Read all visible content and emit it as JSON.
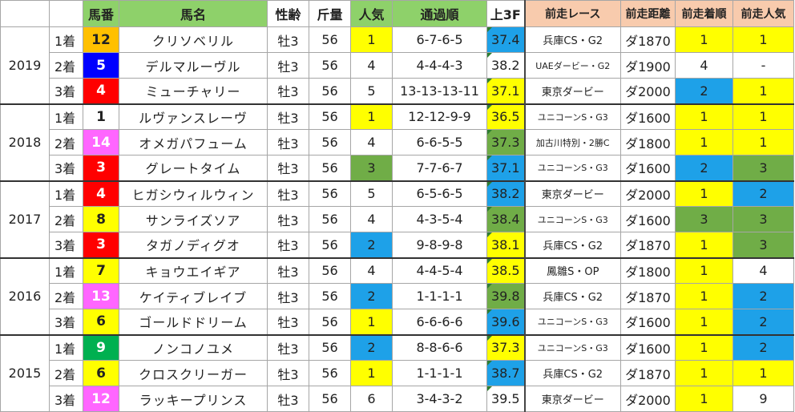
{
  "headers": {
    "blank1": "",
    "blank2": "",
    "umaban": "馬番",
    "bamei": "馬名",
    "seirei": "性齢",
    "kinryo": "斤量",
    "ninki": "人気",
    "tsuka": "通過順",
    "agari": "上3F",
    "zen_race": "前走レース",
    "zen_kyori": "前走距離",
    "zen_chaku": "前走着順",
    "zen_ninki": "前走人気"
  },
  "colors": {
    "yellow": "#ffff00",
    "blue": "#1ea1e8",
    "green": "#70ad47",
    "orange": "#f8cbad",
    "white": "#ffffff",
    "header_green": "#8ed16a"
  },
  "rows": [
    {
      "year": "2019",
      "place": "1着",
      "num": "12",
      "num_bg": "#ffc000",
      "num_fg": "#222",
      "name": "クリソベリル",
      "sex": "牡3",
      "kg": "56",
      "pop": "1",
      "pop_bg": "#ffff00",
      "pass": "6-7-6-5",
      "l3f": "37.4",
      "l3f_bg": "#1ea1e8",
      "prev_race": "兵庫CS・G2",
      "prev_dist": "ダ1870",
      "prev_rank": "1",
      "prev_rank_bg": "#ffff00",
      "prev_pop": "1",
      "prev_pop_bg": "#ffff00"
    },
    {
      "year": "",
      "place": "2着",
      "num": "5",
      "num_bg": "#0000ff",
      "num_fg": "#ffffff",
      "name": "デルマルーヴル",
      "sex": "牡3",
      "kg": "56",
      "pop": "4",
      "pop_bg": "#ffffff",
      "pass": "4-4-4-3",
      "l3f": "38.2",
      "l3f_bg": "#ffffff",
      "prev_race": "UAEダービー・G2",
      "prev_dist": "ダ1900",
      "prev_rank": "4",
      "prev_rank_bg": "#ffffff",
      "prev_pop": "-",
      "prev_pop_bg": "#ffffff"
    },
    {
      "year": "",
      "place": "3着",
      "num": "4",
      "num_bg": "#ff0000",
      "num_fg": "#ffffff",
      "name": "ミューチャリー",
      "sex": "牡3",
      "kg": "56",
      "pop": "5",
      "pop_bg": "#ffffff",
      "pass": "13-13-13-11",
      "l3f": "37.1",
      "l3f_bg": "#ffff00",
      "prev_race": "東京ダービー",
      "prev_dist": "ダ2000",
      "prev_rank": "2",
      "prev_rank_bg": "#1ea1e8",
      "prev_pop": "1",
      "prev_pop_bg": "#ffff00"
    },
    {
      "year": "2018",
      "place": "1着",
      "num": "1",
      "num_bg": "#ffffff",
      "num_fg": "#222",
      "name": "ルヴァンスレーヴ",
      "sex": "牡3",
      "kg": "56",
      "pop": "1",
      "pop_bg": "#ffff00",
      "pass": "12-12-9-9",
      "l3f": "36.5",
      "l3f_bg": "#ffff00",
      "prev_race": "ユニコーンS・G3",
      "prev_dist": "ダ1600",
      "prev_rank": "1",
      "prev_rank_bg": "#ffff00",
      "prev_pop": "1",
      "prev_pop_bg": "#ffff00"
    },
    {
      "year": "",
      "place": "2着",
      "num": "14",
      "num_bg": "#ff66ff",
      "num_fg": "#ffffff",
      "name": "オメガパフューム",
      "sex": "牡3",
      "kg": "56",
      "pop": "4",
      "pop_bg": "#ffffff",
      "pass": "6-6-5-5",
      "l3f": "37.3",
      "l3f_bg": "#70ad47",
      "prev_race": "加古川特別・2勝C",
      "prev_dist": "ダ1800",
      "prev_rank": "1",
      "prev_rank_bg": "#ffff00",
      "prev_pop": "1",
      "prev_pop_bg": "#ffff00"
    },
    {
      "year": "",
      "place": "3着",
      "num": "3",
      "num_bg": "#ff0000",
      "num_fg": "#ffffff",
      "name": "グレートタイム",
      "sex": "牡3",
      "kg": "56",
      "pop": "3",
      "pop_bg": "#70ad47",
      "pass": "7-7-6-7",
      "l3f": "37.1",
      "l3f_bg": "#1ea1e8",
      "prev_race": "ユニコーンS・G3",
      "prev_dist": "ダ1600",
      "prev_rank": "2",
      "prev_rank_bg": "#1ea1e8",
      "prev_pop": "3",
      "prev_pop_bg": "#70ad47"
    },
    {
      "year": "2017",
      "place": "1着",
      "num": "4",
      "num_bg": "#ff0000",
      "num_fg": "#ffffff",
      "name": "ヒガシウィルウィン",
      "sex": "牡3",
      "kg": "56",
      "pop": "5",
      "pop_bg": "#ffffff",
      "pass": "6-5-6-5",
      "l3f": "38.2",
      "l3f_bg": "#1ea1e8",
      "prev_race": "東京ダービー",
      "prev_dist": "ダ2000",
      "prev_rank": "1",
      "prev_rank_bg": "#ffff00",
      "prev_pop": "2",
      "prev_pop_bg": "#1ea1e8"
    },
    {
      "year": "",
      "place": "2着",
      "num": "8",
      "num_bg": "#ffff00",
      "num_fg": "#222",
      "name": "サンライズソア",
      "sex": "牡3",
      "kg": "56",
      "pop": "4",
      "pop_bg": "#ffffff",
      "pass": "4-3-5-4",
      "l3f": "38.4",
      "l3f_bg": "#70ad47",
      "prev_race": "ユニコーンS・G3",
      "prev_dist": "ダ1600",
      "prev_rank": "3",
      "prev_rank_bg": "#70ad47",
      "prev_pop": "3",
      "prev_pop_bg": "#70ad47"
    },
    {
      "year": "",
      "place": "3着",
      "num": "3",
      "num_bg": "#ff0000",
      "num_fg": "#ffffff",
      "name": "タガノディグオ",
      "sex": "牡3",
      "kg": "56",
      "pop": "2",
      "pop_bg": "#1ea1e8",
      "pass": "9-8-9-8",
      "l3f": "38.1",
      "l3f_bg": "#ffff00",
      "prev_race": "兵庫CS・G2",
      "prev_dist": "ダ1870",
      "prev_rank": "1",
      "prev_rank_bg": "#ffff00",
      "prev_pop": "3",
      "prev_pop_bg": "#70ad47"
    },
    {
      "year": "2016",
      "place": "1着",
      "num": "7",
      "num_bg": "#ffff00",
      "num_fg": "#222",
      "name": "キョウエイギア",
      "sex": "牡3",
      "kg": "56",
      "pop": "4",
      "pop_bg": "#ffffff",
      "pass": "4-4-5-4",
      "l3f": "38.5",
      "l3f_bg": "#ffff00",
      "prev_race": "鳳雛S・OP",
      "prev_dist": "ダ1800",
      "prev_rank": "1",
      "prev_rank_bg": "#ffff00",
      "prev_pop": "4",
      "prev_pop_bg": "#ffffff"
    },
    {
      "year": "",
      "place": "2着",
      "num": "13",
      "num_bg": "#ff66ff",
      "num_fg": "#ffffff",
      "name": "ケイティブレイブ",
      "sex": "牡3",
      "kg": "56",
      "pop": "2",
      "pop_bg": "#1ea1e8",
      "pass": "1-1-1-1",
      "l3f": "39.8",
      "l3f_bg": "#70ad47",
      "prev_race": "兵庫CS・G2",
      "prev_dist": "ダ1870",
      "prev_rank": "1",
      "prev_rank_bg": "#ffff00",
      "prev_pop": "2",
      "prev_pop_bg": "#1ea1e8"
    },
    {
      "year": "",
      "place": "3着",
      "num": "6",
      "num_bg": "#ffff00",
      "num_fg": "#222",
      "name": "ゴールドドリーム",
      "sex": "牡3",
      "kg": "56",
      "pop": "1",
      "pop_bg": "#ffff00",
      "pass": "6-6-6-6",
      "l3f": "39.6",
      "l3f_bg": "#1ea1e8",
      "prev_race": "ユニコーンS・G3",
      "prev_dist": "ダ1600",
      "prev_rank": "1",
      "prev_rank_bg": "#ffff00",
      "prev_pop": "2",
      "prev_pop_bg": "#1ea1e8"
    },
    {
      "year": "2015",
      "place": "1着",
      "num": "9",
      "num_bg": "#00b050",
      "num_fg": "#ffffff",
      "name": "ノンコノユメ",
      "sex": "牡3",
      "kg": "56",
      "pop": "2",
      "pop_bg": "#1ea1e8",
      "pass": "8-8-6-6",
      "l3f": "37.3",
      "l3f_bg": "#ffff00",
      "prev_race": "ユニコーンS・G3",
      "prev_dist": "ダ1600",
      "prev_rank": "1",
      "prev_rank_bg": "#ffff00",
      "prev_pop": "2",
      "prev_pop_bg": "#1ea1e8"
    },
    {
      "year": "",
      "place": "2着",
      "num": "6",
      "num_bg": "#ffff00",
      "num_fg": "#222",
      "name": "クロスクリーガー",
      "sex": "牡3",
      "kg": "56",
      "pop": "1",
      "pop_bg": "#ffff00",
      "pass": "1-1-1-1",
      "l3f": "38.7",
      "l3f_bg": "#1ea1e8",
      "prev_race": "兵庫CS・G2",
      "prev_dist": "ダ1870",
      "prev_rank": "1",
      "prev_rank_bg": "#ffff00",
      "prev_pop": "1",
      "prev_pop_bg": "#ffff00"
    },
    {
      "year": "",
      "place": "3着",
      "num": "12",
      "num_bg": "#ff66ff",
      "num_fg": "#ffffff",
      "name": "ラッキープリンス",
      "sex": "牡3",
      "kg": "56",
      "pop": "6",
      "pop_bg": "#ffffff",
      "pass": "3-4-3-2",
      "l3f": "39.5",
      "l3f_bg": "#ffffff",
      "prev_race": "東京ダービー",
      "prev_dist": "ダ2000",
      "prev_rank": "1",
      "prev_rank_bg": "#ffff00",
      "prev_pop": "9",
      "prev_pop_bg": "#ffffff"
    }
  ]
}
